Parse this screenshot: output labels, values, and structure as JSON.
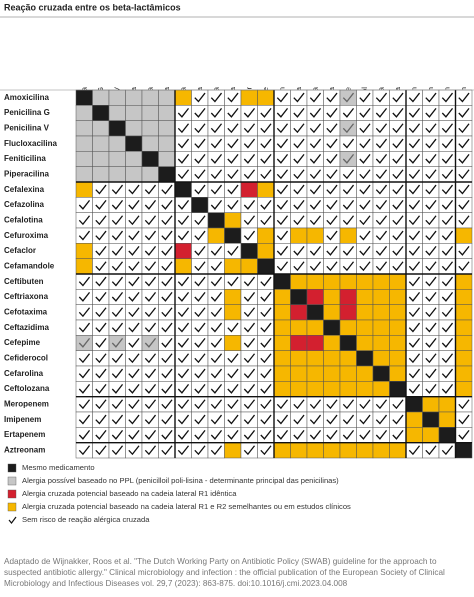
{
  "title": "Reação cruzada entre os beta-lactâmicos",
  "matrix": {
    "drugs": [
      "Amoxicilina",
      "Penicilina G",
      "Penicilina V",
      "Flucloxacilina",
      "Feniticilina",
      "Piperacilina",
      "Cefalexina",
      "Cefazolina",
      "Cefalotina",
      "Cefuroxima",
      "Cefaclor",
      "Cefamandole",
      "Ceftibuten",
      "Ceftriaxona",
      "Cefotaxima",
      "Ceftazidima",
      "Cefepime",
      "Cefiderocol",
      "Cefarolina",
      "Ceftolozana",
      "Meropenem",
      "Imipenem",
      "Ertapenem",
      "Aztreonam"
    ],
    "groups_end": [
      6,
      12,
      20,
      23
    ],
    "rows": [
      "XGGGGGYVVVYYVVVVWVVVVVVV",
      "GXGGGGVVVVVVVVVVVVVVVVVV",
      "GGXGGGVVVVVVVVVVWVVVVVVV",
      "GGGXGGVVVVVVVVVVVVVVVVVV",
      "GGGGXGVVVVVVVVVVWVVVVVVV",
      "GGGGGXVVVVVVVVVVVVVVVVVV",
      "YVVVVVXVVVRYVVVVVVVVVVVV",
      "VVVVVVVXVVVVVVVVVVVVVVVV",
      "VVVVVVVVXYVVVVVVVVVVVVVV",
      "VVVVVVVVYXVYVYYVYVVVVVVY",
      "YVVVVVRVVVXYVVVVVVVVVVVV",
      "YVVVVVYVVYYXVVVVVVVVVVVV",
      "VVVVVVVVVVVVXYYYYYYYVVVY",
      "VVVVVVVVVYVVYXRYRYYYVVVY",
      "VVVVVVVVVYVVYRXYRYYYVVVY",
      "VVVVVVVVVVVVYYYXYYYYVVVY",
      "WVWVWVVVVYVVYRRYXYYYVVVY",
      "VVVVVVVVVVVVYYYYYXYYVVVY",
      "VVVVVVVVVVVVYYYYYYXYVVVY",
      "VVVVVVVVVVVVYYYYYYYXVVVY",
      "VVVVVVVVVVVVVVVVVVVVXYYV",
      "VVVVVVVVVVVVVVVVVVVVYXYV",
      "VVVVVVVVVVVVVVVVVVVVYYXV",
      "VVVVVVVVVYVVYYYYYYYYVVVX"
    ]
  },
  "legend": [
    {
      "key": "X",
      "label": "Mesmo medicamento"
    },
    {
      "key": "G",
      "label": "Alergia possível baseado no PPL (penicilloil poli-lisina - determinante principal das penicilinas)"
    },
    {
      "key": "R",
      "label": "Alergia cruzada potencial baseado na cadeia lateral R1 idêntica"
    },
    {
      "key": "Y",
      "label": "Alergia cruzada potencial baseado na cadeia lateral R1 e R2 semelhantes ou em estudos clínicos"
    },
    {
      "key": "V",
      "label": "Sem risco de reação alérgica cruzada"
    }
  ],
  "footer": "Adaptado de Wijnakker, Roos et al. \"The Dutch Working Party on Antibiotic Policy (SWAB) guideline for the approach to suspected antibiotic allergy.\" Clinical microbiology and infection : the official publication of the European Society of Clinical Microbiology and Infectious Diseases vol. 29,7 (2023): 863-875. doi:10.1016/j.cmi.2023.04.008"
}
